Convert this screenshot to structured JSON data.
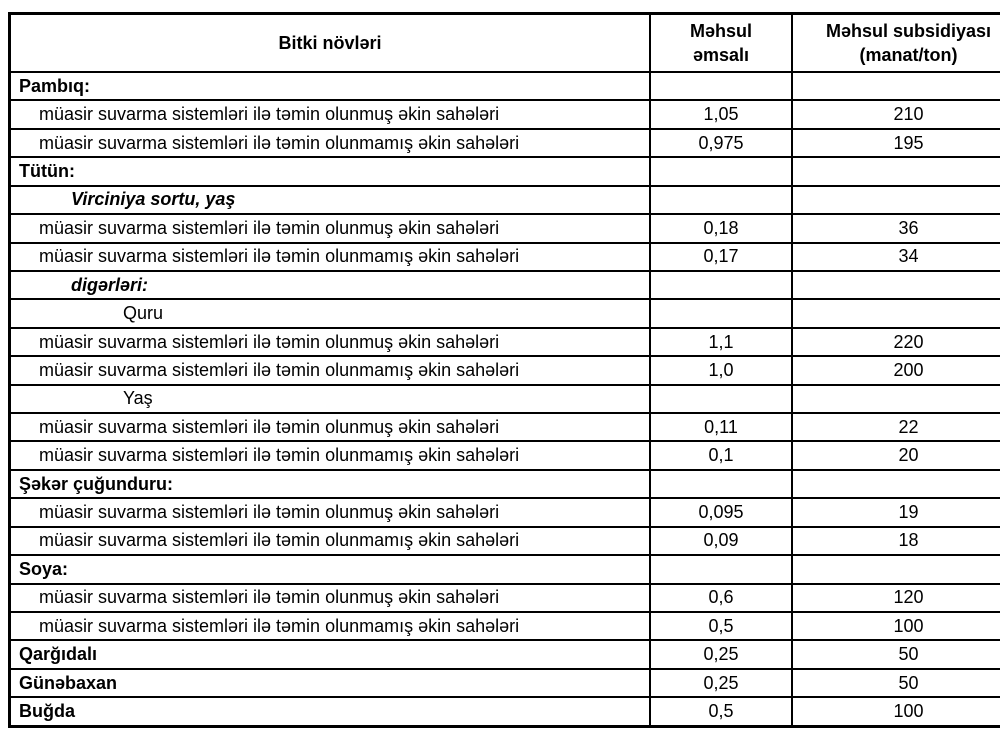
{
  "table": {
    "header": {
      "crop": "Bitki növləri",
      "coefficient": "Məhsul\nəmsalı",
      "subsidy": "Məhsul subsidiyası\n(manat/ton)"
    },
    "rows": [
      {
        "label": "Pambıq:",
        "type": "section",
        "emsal": "",
        "subsidiya": ""
      },
      {
        "label": "müasir suvarma sistemləri ilə təmin olunmuş əkin sahələri",
        "type": "item",
        "emsal": "1,05",
        "subsidiya": "210"
      },
      {
        "label": "müasir suvarma sistemləri ilə təmin olunmamış əkin sahələri",
        "type": "item",
        "emsal": "0,975",
        "subsidiya": "195"
      },
      {
        "label": "Tütün:",
        "type": "section",
        "emsal": "",
        "subsidiya": ""
      },
      {
        "label": "Virciniya sortu, yaş",
        "type": "variant",
        "emsal": "",
        "subsidiya": ""
      },
      {
        "label": "müasir suvarma sistemləri ilə təmin olunmuş əkin sahələri",
        "type": "item",
        "emsal": "0,18",
        "subsidiya": "36"
      },
      {
        "label": "müasir suvarma sistemləri ilə təmin olunmamış əkin sahələri",
        "type": "item",
        "emsal": "0,17",
        "subsidiya": "34"
      },
      {
        "label": "digərləri:",
        "type": "variant",
        "emsal": "",
        "subsidiya": ""
      },
      {
        "label": "Quru",
        "type": "state",
        "emsal": "",
        "subsidiya": ""
      },
      {
        "label": "müasir suvarma sistemləri ilə təmin olunmuş əkin sahələri",
        "type": "item",
        "emsal": "1,1",
        "subsidiya": "220"
      },
      {
        "label": "müasir suvarma sistemləri ilə təmin olunmamış əkin sahələri",
        "type": "item",
        "emsal": "1,0",
        "subsidiya": "200"
      },
      {
        "label": "Yaş",
        "type": "state",
        "emsal": "",
        "subsidiya": ""
      },
      {
        "label": "müasir suvarma sistemləri ilə təmin olunmuş əkin sahələri",
        "type": "item",
        "emsal": "0,11",
        "subsidiya": "22"
      },
      {
        "label": "müasir suvarma sistemləri ilə təmin olunmamış əkin sahələri",
        "type": "item",
        "emsal": "0,1",
        "subsidiya": "20"
      },
      {
        "label": "Şəkər çuğunduru:",
        "type": "section",
        "emsal": "",
        "subsidiya": ""
      },
      {
        "label": "müasir suvarma sistemləri ilə təmin olunmuş əkin sahələri",
        "type": "item",
        "emsal": "0,095",
        "subsidiya": "19"
      },
      {
        "label": "müasir suvarma sistemləri ilə təmin olunmamış əkin sahələri",
        "type": "item",
        "emsal": "0,09",
        "subsidiya": "18"
      },
      {
        "label": "Soya:",
        "type": "section",
        "emsal": "",
        "subsidiya": ""
      },
      {
        "label": "müasir suvarma sistemləri ilə təmin olunmuş əkin sahələri",
        "type": "item",
        "emsal": "0,6",
        "subsidiya": "120"
      },
      {
        "label": "müasir suvarma sistemləri ilə təmin olunmamış əkin sahələri",
        "type": "item",
        "emsal": "0,5",
        "subsidiya": "100"
      },
      {
        "label": "Qarğıdalı",
        "type": "section",
        "emsal": "0,25",
        "subsidiya": "50"
      },
      {
        "label": "Günəbaxan",
        "type": "section",
        "emsal": "0,25",
        "subsidiya": "50"
      },
      {
        "label": "Buğda",
        "type": "section",
        "emsal": "0,5",
        "subsidiya": "100"
      }
    ]
  }
}
